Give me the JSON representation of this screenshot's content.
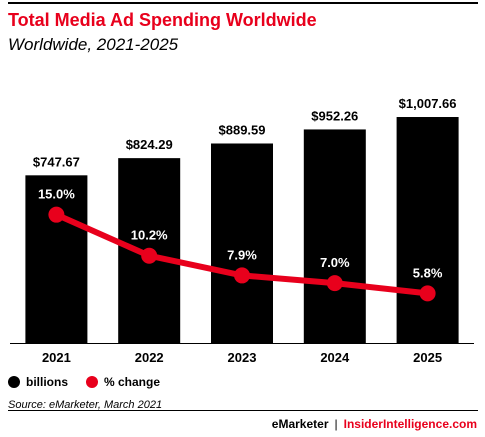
{
  "header": {
    "title": "Total Media Ad Spending Worldwide",
    "subtitle": "Worldwide, 2021-2025"
  },
  "legend": {
    "items": [
      {
        "label": "billions",
        "color": "#000000"
      },
      {
        "label": "% change",
        "color": "#e8001c"
      }
    ]
  },
  "source": "Source: eMarketer, March 2021",
  "footer": {
    "brand_primary": "eMarketer",
    "separator": "|",
    "brand_secondary": "InsiderIntelligence.com"
  },
  "colors": {
    "accent": "#e8001c",
    "bars": "#000000"
  },
  "chart_data": {
    "type": "bar",
    "categories": [
      "2021",
      "2022",
      "2023",
      "2024",
      "2025"
    ],
    "series": [
      {
        "name": "billions",
        "type": "bar",
        "values": [
          747.67,
          824.29,
          889.59,
          952.26,
          1007.66
        ],
        "labels": [
          "$747.67",
          "$824.29",
          "$889.59",
          "$952.26",
          "$1,007.66"
        ],
        "color": "#000000"
      },
      {
        "name": "% change",
        "type": "line",
        "values": [
          15.0,
          10.2,
          7.9,
          7.0,
          5.8
        ],
        "labels": [
          "15.0%",
          "10.2%",
          "7.9%",
          "7.0%",
          "5.8%"
        ],
        "color": "#e8001c"
      }
    ],
    "title": "Total Media Ad Spending Worldwide",
    "subtitle": "Worldwide, 2021-2025",
    "xlabel": "",
    "ylabel": "",
    "ylim_bars": [
      0,
      1030
    ],
    "ylim_line": [
      0,
      27
    ],
    "grid": false,
    "legend_position": "bottom-left"
  }
}
